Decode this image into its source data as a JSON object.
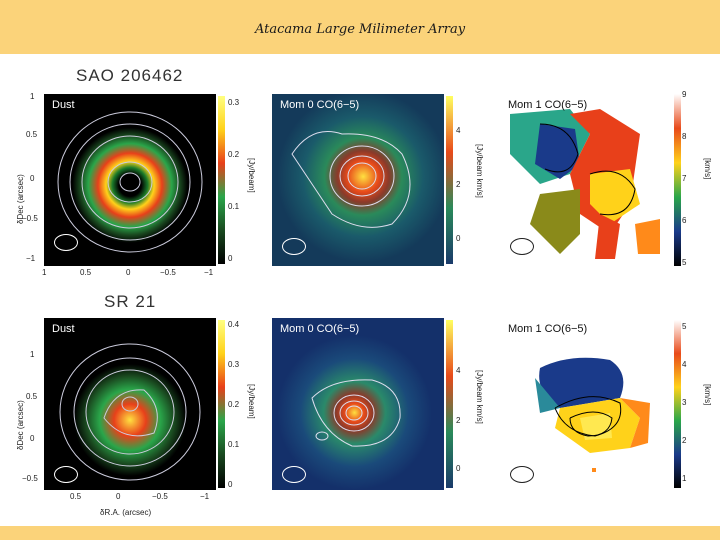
{
  "slide": {
    "title": "Atacama Large Milimeter Array"
  },
  "objects": [
    {
      "name": "SAO 206462",
      "panels": {
        "dust": {
          "label": "Dust",
          "cbar_ticks": [
            "0.3",
            "0.2",
            "0.1",
            "0"
          ],
          "cbar_unit": "[Jy/beam]"
        },
        "mom0": {
          "label": "Mom 0 CO(6−5)",
          "cbar_ticks": [
            "4",
            "2",
            "0"
          ],
          "cbar_unit": "[Jy/beam km/s]"
        },
        "mom1": {
          "label": "Mom 1 CO(6−5)",
          "cbar_ticks": [
            "9",
            "8",
            "7",
            "6",
            "5"
          ],
          "cbar_unit": "[km/s]"
        }
      },
      "y_ticks": [
        "1",
        "0.5",
        "0",
        "−0.5",
        "−1"
      ],
      "x_ticks": [
        "1",
        "0.5",
        "0",
        "−0.5",
        "−1"
      ]
    },
    {
      "name": "SR 21",
      "panels": {
        "dust": {
          "label": "Dust",
          "cbar_ticks": [
            "0.4",
            "0.3",
            "0.2",
            "0.1",
            "0"
          ],
          "cbar_unit": "[Jy/beam]"
        },
        "mom0": {
          "label": "Mom 0 CO(6−5)",
          "cbar_ticks": [
            "4",
            "2",
            "0"
          ],
          "cbar_unit": "[Jy/beam km/s]"
        },
        "mom1": {
          "label": "Mom 1 CO(6−5)",
          "cbar_ticks": [
            "5",
            "4",
            "3",
            "2",
            "1"
          ],
          "cbar_unit": "[km/s]"
        }
      },
      "y_ticks": [
        "1",
        "0.5",
        "0",
        "−0.5"
      ],
      "x_ticks": [
        "0.5",
        "0",
        "−0.5",
        "−1"
      ]
    }
  ],
  "axes": {
    "ylabel": "δDec (arcsec)",
    "xlabel": "δR.A. (arcsec)"
  },
  "colors": {
    "frame": "#fbd37a",
    "panel_bg": "#ffffff"
  }
}
